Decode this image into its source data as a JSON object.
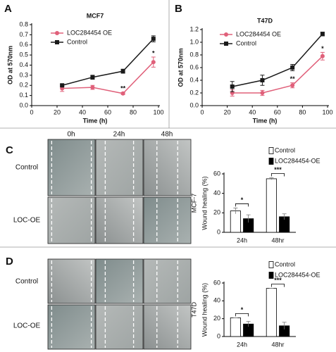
{
  "panel_labels": [
    "A",
    "B",
    "C",
    "D"
  ],
  "wound_assay": [
    {
      "time_labels": [
        "0h",
        "24h",
        "48h"
      ],
      "row_labels": [
        "Control",
        "LOC-OE"
      ]
    },
    {
      "row_labels": [
        "Control",
        "LOC-OE"
      ]
    }
  ],
  "chart_data": [
    {
      "type": "line",
      "title": "MCF7",
      "x_label": "Time (h)",
      "y_label": "OD at 570nm",
      "x": [
        24,
        48,
        72,
        96
      ],
      "xlim": [
        0,
        100
      ],
      "xticks": [
        0,
        20,
        40,
        60,
        80,
        100
      ],
      "ylim": [
        0,
        0.8
      ],
      "yticks": [
        {
          "value": 0,
          "label": "0.0"
        },
        0.1,
        0.2,
        0.3,
        0.4,
        0.5,
        0.6,
        0.7,
        0.8
      ],
      "series": [
        {
          "name": "LOC284454 OE",
          "color": "#e0607a",
          "marker": "circle",
          "values": [
            0.17,
            0.18,
            0.12,
            0.43
          ],
          "errors": [
            0.03,
            0.02,
            0.01,
            0.05
          ],
          "annotations": [
            null,
            null,
            "**",
            "*"
          ]
        },
        {
          "name": "Control",
          "color": "#1a1a1a",
          "marker": "square",
          "values": [
            0.2,
            0.28,
            0.34,
            0.66
          ],
          "errors": [
            0.01,
            0.02,
            0.02,
            0.03
          ]
        }
      ]
    },
    {
      "type": "line",
      "title": "T47D",
      "x_label": "Time (h)",
      "y_label": "OD at 570nm",
      "x": [
        24,
        48,
        72,
        96
      ],
      "xlim": [
        0,
        100
      ],
      "xticks": [
        0,
        20,
        40,
        60,
        80,
        100
      ],
      "ylim": [
        0,
        1.2
      ],
      "yticks": [
        {
          "value": 0,
          "label": "0.0"
        },
        0.2,
        0.4,
        0.6,
        0.8,
        {
          "value": 1,
          "label": "1.0"
        },
        1.2
      ],
      "series": [
        {
          "name": "LOC284454 OE",
          "color": "#e0607a",
          "marker": "circle",
          "values": [
            0.2,
            0.2,
            0.32,
            0.78
          ],
          "errors": [
            0.05,
            0.04,
            0.04,
            0.06
          ],
          "annotations": [
            null,
            null,
            "**",
            "*"
          ]
        },
        {
          "name": "Control",
          "color": "#1a1a1a",
          "marker": "square",
          "values": [
            0.3,
            0.4,
            0.6,
            1.13
          ],
          "errors": [
            0.08,
            0.08,
            0.05,
            0.03
          ]
        }
      ]
    },
    {
      "type": "bar",
      "title": "MCF-7",
      "y_label": "Wound healing (%)",
      "categories": [
        "24h",
        "48hr"
      ],
      "ylim": [
        0,
        60
      ],
      "yticks": [
        0,
        20,
        40,
        60
      ],
      "significance": [
        "*",
        "***"
      ],
      "series": [
        {
          "name": "Control",
          "color": "#ffffff",
          "values": [
            22,
            55
          ],
          "errors": [
            3,
            1
          ]
        },
        {
          "name": "LOC284454-OE",
          "color": "#000000",
          "values": [
            14,
            16
          ],
          "errors": [
            4,
            3
          ]
        }
      ]
    },
    {
      "type": "bar",
      "title": "T47D",
      "y_label": "Wound healing (%)",
      "categories": [
        "24h",
        "48hr"
      ],
      "ylim": [
        0,
        60
      ],
      "yticks": [
        0,
        20,
        40,
        60
      ],
      "significance": [
        "*",
        "***"
      ],
      "series": [
        {
          "name": "Control",
          "color": "#ffffff",
          "values": [
            21,
            54
          ],
          "errors": [
            0,
            0
          ]
        },
        {
          "name": "LOC284454-OE",
          "color": "#000000",
          "values": [
            14,
            12
          ],
          "errors": [
            3,
            4
          ]
        }
      ]
    }
  ]
}
